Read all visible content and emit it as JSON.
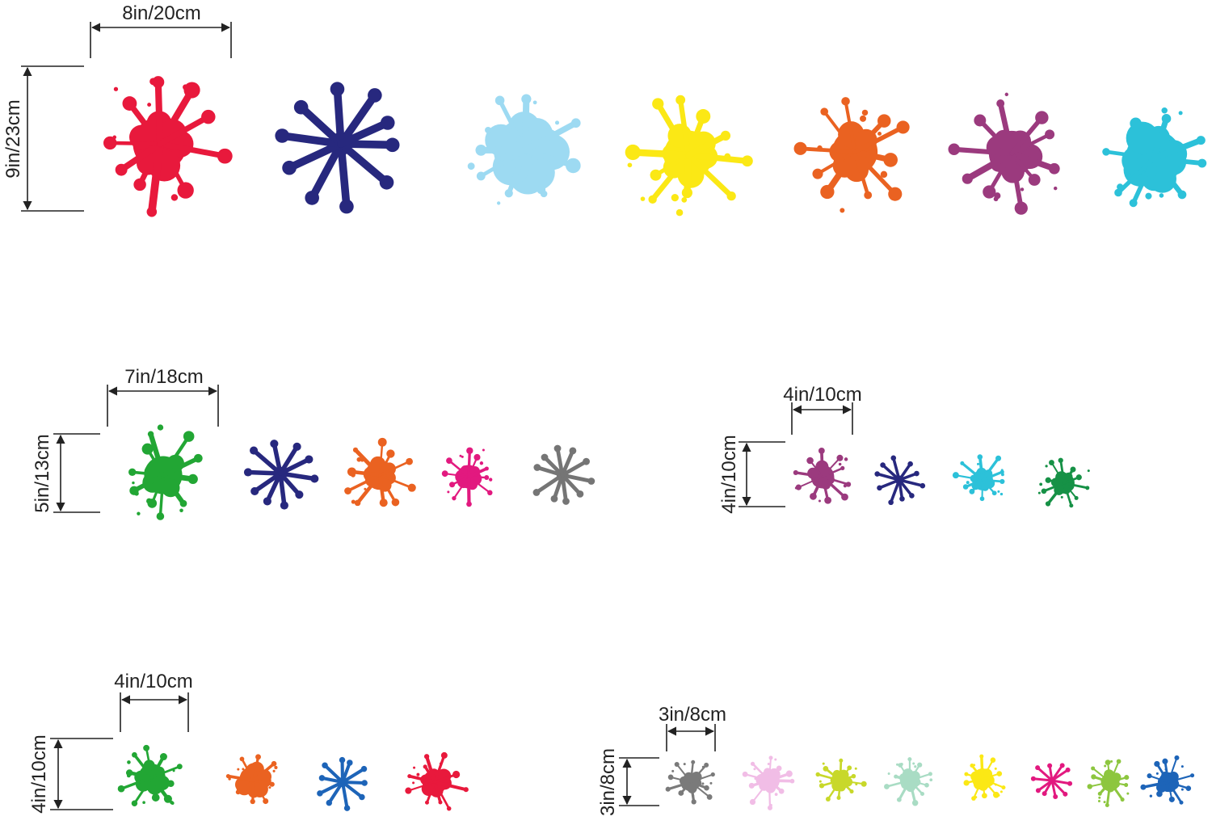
{
  "groups": [
    {
      "id": "group-9in",
      "width_label": "8in/20cm",
      "height_label": "9in/23cm",
      "splats": [
        {
          "color": "#e8193c",
          "style": "splash"
        },
        {
          "color": "#27287e",
          "style": "star"
        },
        {
          "color": "#9ddaf2",
          "style": "blob"
        },
        {
          "color": "#fbe815",
          "style": "splash"
        },
        {
          "color": "#ea6221",
          "style": "splash"
        },
        {
          "color": "#9b3a7e",
          "style": "splash"
        },
        {
          "color": "#2cc1d9",
          "style": "blob"
        }
      ]
    },
    {
      "id": "group-5in",
      "width_label": "7in/18cm",
      "height_label": "5in/13cm",
      "splats": [
        {
          "color": "#22a634",
          "style": "splash"
        },
        {
          "color": "#27287e",
          "style": "star"
        },
        {
          "color": "#ea6221",
          "style": "splash"
        },
        {
          "color": "#e2197f",
          "style": "splash"
        },
        {
          "color": "#757575",
          "style": "star"
        }
      ]
    },
    {
      "id": "group-4in-a",
      "width_label": "4in/10cm",
      "height_label": "4in/10cm",
      "splats": [
        {
          "color": "#9b3a7e",
          "style": "splash"
        },
        {
          "color": "#27287e",
          "style": "star"
        },
        {
          "color": "#2cc1d9",
          "style": "splash"
        },
        {
          "color": "#169146",
          "style": "splash"
        }
      ]
    },
    {
      "id": "group-4in-b",
      "width_label": "4in/10cm",
      "height_label": "4in/10cm",
      "splats": [
        {
          "color": "#22a634",
          "style": "splash"
        },
        {
          "color": "#ea6221",
          "style": "blob"
        },
        {
          "color": "#1d64b8",
          "style": "star"
        },
        {
          "color": "#e8193c",
          "style": "splash"
        }
      ]
    },
    {
      "id": "group-3in",
      "width_label": "3in/8cm",
      "height_label": "3in/8cm",
      "splats": [
        {
          "color": "#7a7a7a",
          "style": "splash"
        },
        {
          "color": "#f1bde6",
          "style": "splash"
        },
        {
          "color": "#c8d82a",
          "style": "splash"
        },
        {
          "color": "#a9dcc4",
          "style": "splash"
        },
        {
          "color": "#fbe815",
          "style": "splash"
        },
        {
          "color": "#e2197f",
          "style": "star"
        },
        {
          "color": "#8dc63f",
          "style": "splash"
        },
        {
          "color": "#1d64b8",
          "style": "splash"
        }
      ]
    }
  ]
}
